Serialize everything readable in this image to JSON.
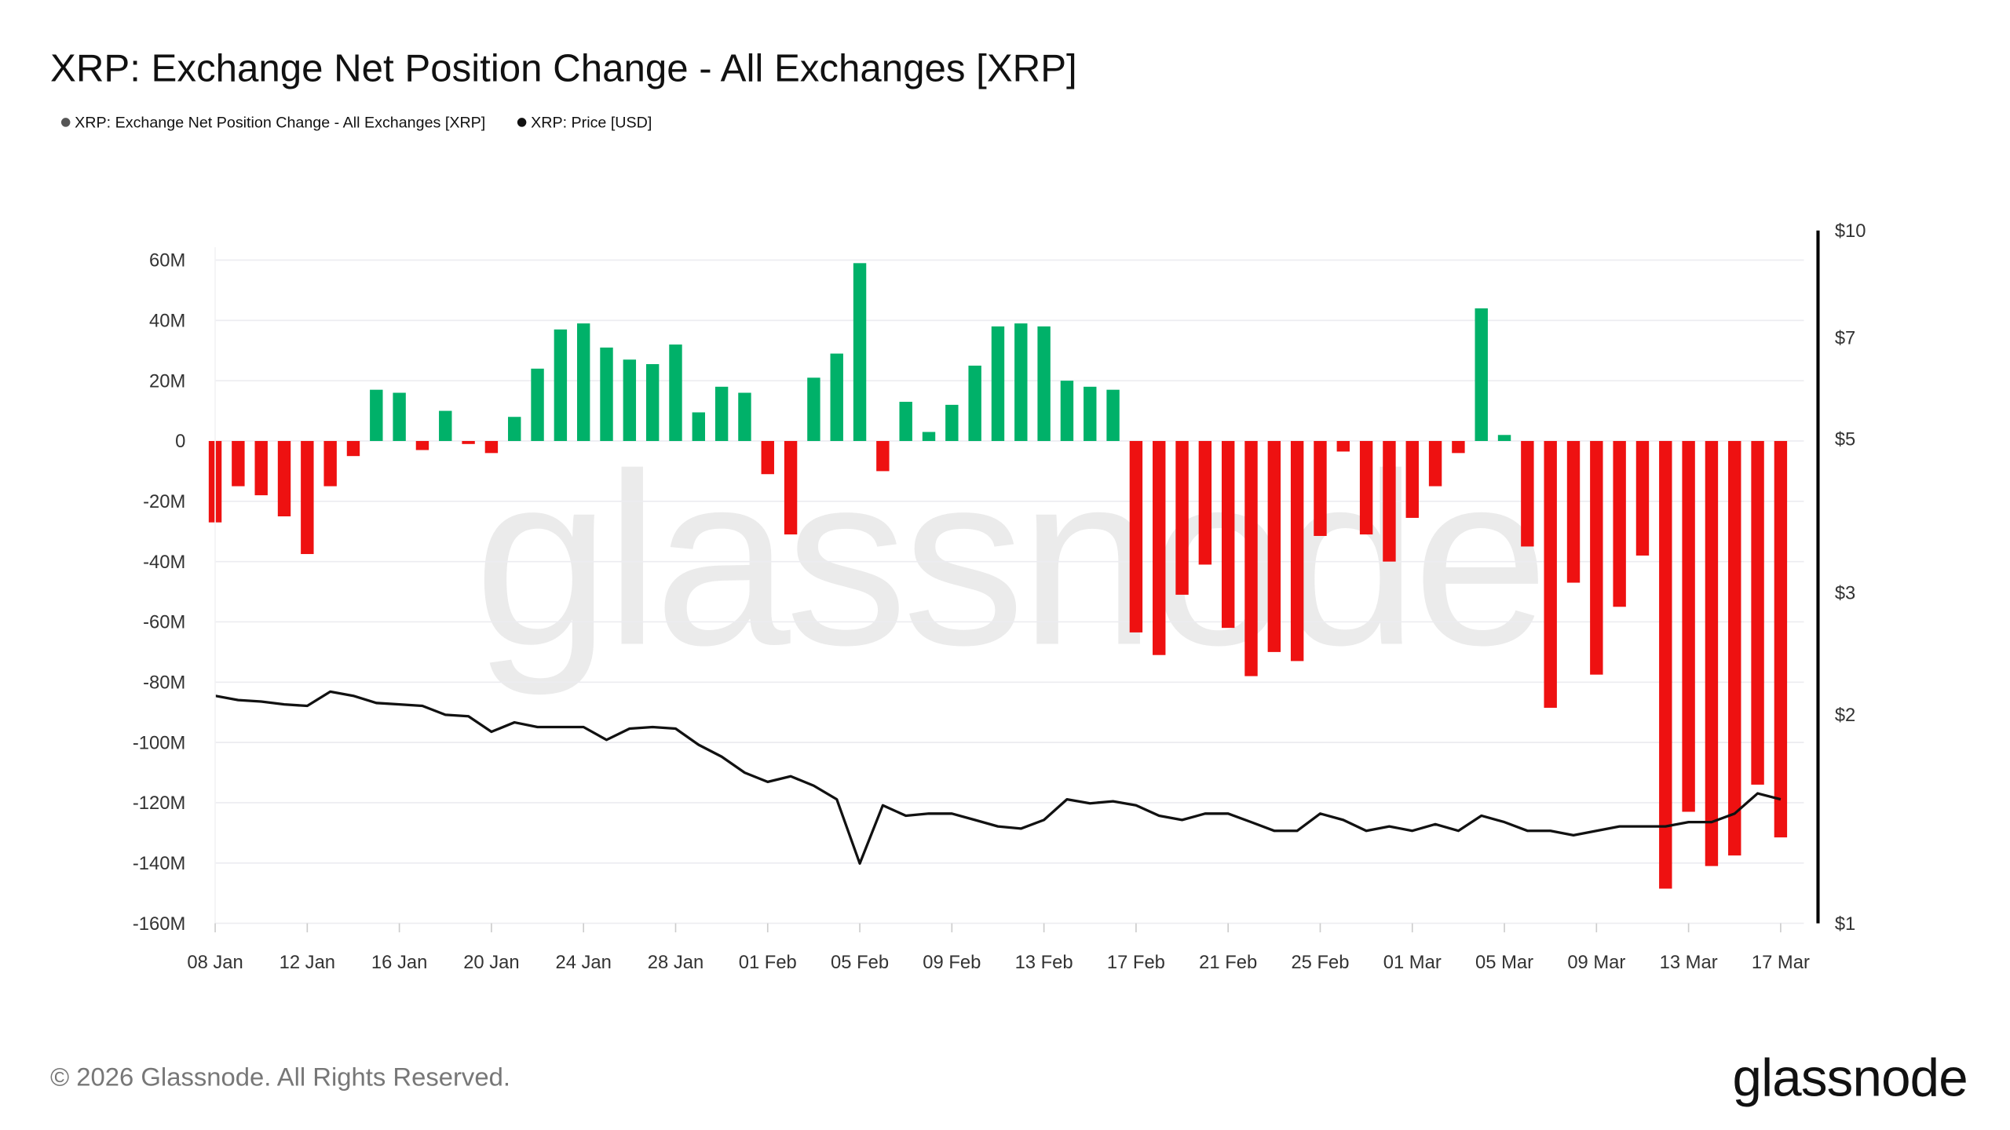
{
  "chart_data": {
    "type": "bar",
    "title": "XRP: Exchange Net Position Change - All Exchanges [XRP]",
    "legend": [
      {
        "label": "XRP: Exchange Net Position Change - All Exchanges [XRP]",
        "color": "#555555"
      },
      {
        "label": "XRP: Price [USD]",
        "color": "#111111"
      }
    ],
    "legend_placement": "top-left",
    "grid": true,
    "x": [
      "08 Jan",
      "09 Jan",
      "10 Jan",
      "11 Jan",
      "12 Jan",
      "13 Jan",
      "14 Jan",
      "15 Jan",
      "16 Jan",
      "17 Jan",
      "18 Jan",
      "19 Jan",
      "20 Jan",
      "21 Jan",
      "22 Jan",
      "23 Jan",
      "24 Jan",
      "25 Jan",
      "26 Jan",
      "27 Jan",
      "28 Jan",
      "29 Jan",
      "30 Jan",
      "31 Jan",
      "01 Feb",
      "02 Feb",
      "03 Feb",
      "04 Feb",
      "05 Feb",
      "06 Feb",
      "07 Feb",
      "08 Feb",
      "09 Feb",
      "10 Feb",
      "11 Feb",
      "12 Feb",
      "13 Feb",
      "14 Feb",
      "15 Feb",
      "16 Feb",
      "17 Feb",
      "18 Feb",
      "19 Feb",
      "20 Feb",
      "21 Feb",
      "22 Feb",
      "23 Feb",
      "24 Feb",
      "25 Feb",
      "26 Feb",
      "27 Feb",
      "28 Feb",
      "01 Mar",
      "02 Mar",
      "03 Mar",
      "04 Mar",
      "05 Mar",
      "06 Mar",
      "07 Mar",
      "08 Mar",
      "09 Mar",
      "10 Mar",
      "11 Mar",
      "12 Mar",
      "13 Mar",
      "14 Mar",
      "15 Mar",
      "16 Mar",
      "17 Mar"
    ],
    "x_ticks": [
      "08 Jan",
      "12 Jan",
      "16 Jan",
      "20 Jan",
      "24 Jan",
      "28 Jan",
      "01 Feb",
      "05 Feb",
      "09 Feb",
      "13 Feb",
      "17 Feb",
      "21 Feb",
      "25 Feb",
      "01 Mar",
      "05 Mar",
      "09 Mar",
      "13 Mar",
      "17 Mar"
    ],
    "series": [
      {
        "name": "XRP: Exchange Net Position Change - All Exchanges [XRP]",
        "type": "bar",
        "axis": "left",
        "unit": "M XRP",
        "positive_color": "#00b169",
        "negative_color": "#ee1111",
        "values": [
          -27,
          -15,
          -18,
          -25,
          -37.5,
          -15,
          -5,
          17,
          16,
          -3,
          10,
          -1,
          -4,
          8,
          24,
          37,
          39,
          31,
          27,
          25.5,
          32,
          9.5,
          18,
          16,
          -11,
          -31,
          21,
          29,
          59,
          -10,
          13,
          3,
          12,
          25,
          38,
          39,
          38,
          20,
          18,
          17,
          -63.5,
          -71,
          -51,
          -41,
          -62,
          -78,
          -70,
          -73,
          -31.5,
          -3.5,
          -31,
          -40,
          -25.5,
          -15,
          -4,
          44,
          2,
          -35,
          -88.5,
          -47,
          -77.5,
          -55,
          -38,
          -148.5,
          -123,
          -141,
          -137.5,
          -114,
          -131.5
        ]
      },
      {
        "name": "XRP: Price [USD]",
        "type": "line",
        "axis": "right",
        "color": "#111111",
        "values": [
          2.13,
          2.1,
          2.09,
          2.07,
          2.06,
          2.16,
          2.13,
          2.08,
          2.07,
          2.06,
          2.0,
          1.99,
          1.89,
          1.95,
          1.92,
          1.92,
          1.92,
          1.84,
          1.91,
          1.92,
          1.91,
          1.81,
          1.74,
          1.65,
          1.6,
          1.63,
          1.58,
          1.51,
          1.22,
          1.48,
          1.43,
          1.44,
          1.44,
          1.41,
          1.38,
          1.37,
          1.41,
          1.51,
          1.49,
          1.5,
          1.48,
          1.43,
          1.41,
          1.44,
          1.44,
          1.4,
          1.36,
          1.36,
          1.44,
          1.41,
          1.36,
          1.38,
          1.36,
          1.39,
          1.36,
          1.43,
          1.4,
          1.36,
          1.36,
          1.34,
          1.36,
          1.38,
          1.38,
          1.38,
          1.4,
          1.4,
          1.44,
          1.54,
          1.51
        ]
      }
    ],
    "y_left": {
      "ylim": [
        -160,
        60
      ],
      "ticks": [
        60,
        40,
        20,
        0,
        -20,
        -40,
        -60,
        -80,
        -100,
        -120,
        -140,
        -160
      ],
      "tick_labels": [
        "60M",
        "40M",
        "20M",
        "0",
        "-20M",
        "-40M",
        "-60M",
        "-80M",
        "-100M",
        "-120M",
        "-140M",
        "-160M"
      ]
    },
    "y_right": {
      "scale": "log",
      "ylim": [
        1,
        10
      ],
      "ticks": [
        10,
        7,
        5,
        3,
        2,
        1
      ],
      "tick_labels": [
        "$10",
        "$7",
        "$5",
        "$3",
        "$2",
        "$1"
      ]
    }
  },
  "footer": {
    "copyright": "© 2026 Glassnode. All Rights Reserved.",
    "logo": "glassnode",
    "watermark": "glassnode"
  }
}
